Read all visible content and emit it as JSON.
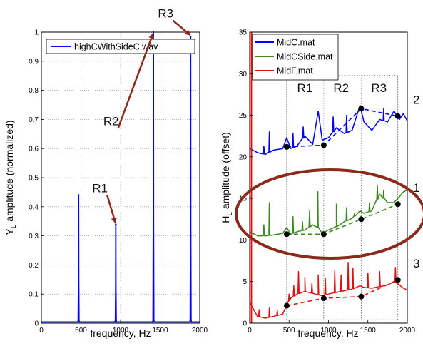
{
  "chart_data": [
    {
      "type": "line",
      "title": "",
      "xlabel": "frequency, Hz",
      "ylabel": "Y_L amplitude (normalized)",
      "xlim": [
        0,
        2000
      ],
      "ylim": [
        0,
        1
      ],
      "xticks": [
        0,
        500,
        1000,
        1500,
        2000
      ],
      "yticks": [
        0,
        0.1,
        0.2,
        0.3,
        0.4,
        0.5,
        0.6,
        0.7,
        0.8,
        0.9,
        1
      ],
      "grid": true,
      "legend": "top",
      "series": [
        {
          "name": "highCWithSideC.wav",
          "color": "#0000ff",
          "peaks": [
            {
              "x": 470,
              "y": 0.44
            },
            {
              "x": 940,
              "y": 0.34
            },
            {
              "x": 1415,
              "y": 1.0
            },
            {
              "x": 1885,
              "y": 0.985
            }
          ]
        }
      ],
      "annotations": [
        {
          "label": "R1",
          "x": 740,
          "y": 0.45,
          "arrow_to": [
            935,
            0.345
          ]
        },
        {
          "label": "R2",
          "x": 880,
          "y": 0.68,
          "arrow_to": [
            1410,
            0.995
          ]
        },
        {
          "label": "R3",
          "x": 1570,
          "y": 1.05,
          "arrow_to": [
            1880,
            0.99
          ]
        }
      ]
    },
    {
      "type": "line",
      "title": "",
      "xlabel": "frequency, Hz",
      "ylabel": "H_L amplitude (offset)",
      "xlim": [
        0,
        2000
      ],
      "ylim": [
        0,
        35
      ],
      "xticks": [
        0,
        500,
        1000,
        1500,
        2000
      ],
      "yticks": [
        0,
        5,
        10,
        15,
        20,
        25,
        30,
        35
      ],
      "grid": false,
      "legend": "top-left",
      "series": [
        {
          "name": "MidC.mat",
          "color": "#0000ff",
          "label": "2",
          "dots": [
            [
              470,
              21.2
            ],
            [
              940,
              21.4
            ],
            [
              1415,
              25.8
            ],
            [
              1880,
              24.9
            ]
          ],
          "profile": [
            [
              0,
              21
            ],
            [
              100,
              20.5
            ],
            [
              200,
              20.3
            ],
            [
              300,
              20.8
            ],
            [
              420,
              21
            ],
            [
              470,
              22.3
            ],
            [
              520,
              21
            ],
            [
              600,
              21.3
            ],
            [
              700,
              22.5
            ],
            [
              800,
              21.5
            ],
            [
              870,
              25.5
            ],
            [
              920,
              22
            ],
            [
              1000,
              22.3
            ],
            [
              1100,
              23.5
            ],
            [
              1200,
              22.8
            ],
            [
              1300,
              23.2
            ],
            [
              1400,
              26.2
            ],
            [
              1450,
              24.2
            ],
            [
              1550,
              23.2
            ],
            [
              1650,
              24.5
            ],
            [
              1750,
              24.2
            ],
            [
              1830,
              25.5
            ],
            [
              1900,
              24.5
            ],
            [
              1950,
              25.2
            ],
            [
              2000,
              24.3
            ]
          ],
          "spikes": [
            [
              180,
              21.3
            ],
            [
              250,
              23
            ],
            [
              550,
              22.8
            ],
            [
              680,
              23.6
            ],
            [
              1060,
              24.8
            ],
            [
              1230,
              25
            ],
            [
              1700,
              25.8
            ]
          ]
        },
        {
          "name": "MidCSide.mat",
          "color": "#3c8a1e",
          "label": "1",
          "dots": [
            [
              470,
              10.7
            ],
            [
              940,
              10.7
            ],
            [
              1415,
              12.5
            ],
            [
              1880,
              14.3
            ]
          ],
          "profile": [
            [
              0,
              11
            ],
            [
              100,
              10.5
            ],
            [
              200,
              10.5
            ],
            [
              300,
              10.6
            ],
            [
              420,
              10.8
            ],
            [
              470,
              11.5
            ],
            [
              520,
              10.7
            ],
            [
              600,
              11
            ],
            [
              700,
              11.2
            ],
            [
              800,
              11.8
            ],
            [
              870,
              11.5
            ],
            [
              920,
              10.8
            ],
            [
              1000,
              11.2
            ],
            [
              1100,
              11.6
            ],
            [
              1200,
              12.2
            ],
            [
              1300,
              12.6
            ],
            [
              1400,
              13.5
            ],
            [
              1450,
              13.2
            ],
            [
              1550,
              13.5
            ],
            [
              1650,
              15.5
            ],
            [
              1750,
              14.5
            ],
            [
              1830,
              14.5
            ],
            [
              1900,
              15.2
            ],
            [
              1950,
              15.8
            ],
            [
              2000,
              16
            ]
          ],
          "spikes": [
            [
              180,
              11.8
            ],
            [
              250,
              14.5
            ],
            [
              550,
              12.8
            ],
            [
              670,
              12.2
            ],
            [
              760,
              13.5
            ],
            [
              865,
              15.8
            ],
            [
              1100,
              14.3
            ],
            [
              1230,
              13.9
            ],
            [
              1330,
              13.2
            ],
            [
              1520,
              14.5
            ],
            [
              1620,
              16.6
            ],
            [
              1700,
              16
            ]
          ]
        },
        {
          "name": "MidF.mat",
          "color": "#dd1111",
          "label": "3",
          "dots": [
            [
              470,
              2.1
            ],
            [
              940,
              3.0
            ],
            [
              1415,
              3.2
            ],
            [
              1880,
              5.2
            ]
          ],
          "profile": [
            [
              0,
              2.5
            ],
            [
              100,
              0.8
            ],
            [
              200,
              0.6
            ],
            [
              300,
              0.8
            ],
            [
              420,
              1.1
            ],
            [
              470,
              2.2
            ],
            [
              520,
              3
            ],
            [
              600,
              3.5
            ],
            [
              700,
              3.8
            ],
            [
              800,
              3.6
            ],
            [
              870,
              3.4
            ],
            [
              920,
              3.3
            ],
            [
              1000,
              3.5
            ],
            [
              1100,
              3.7
            ],
            [
              1200,
              3.9
            ],
            [
              1300,
              4.1
            ],
            [
              1400,
              4.5
            ],
            [
              1450,
              4.3
            ],
            [
              1550,
              4.2
            ],
            [
              1650,
              4.4
            ],
            [
              1750,
              4.6
            ],
            [
              1830,
              5
            ],
            [
              1900,
              4.6
            ],
            [
              1950,
              4.2
            ],
            [
              2000,
              4
            ]
          ],
          "spikes": [
            [
              120,
              1.6
            ],
            [
              250,
              1.8
            ],
            [
              350,
              1.5
            ],
            [
              500,
              3.5
            ],
            [
              560,
              4.5
            ],
            [
              620,
              6.2
            ],
            [
              700,
              5.5
            ],
            [
              790,
              4.8
            ],
            [
              870,
              5.8
            ],
            [
              960,
              5.4
            ],
            [
              1080,
              6.3
            ],
            [
              1160,
              5.8
            ],
            [
              1250,
              7.3
            ],
            [
              1310,
              6.6
            ],
            [
              1500,
              6
            ],
            [
              1650,
              6.2
            ],
            [
              1850,
              6.7
            ]
          ]
        }
      ],
      "annotations": [
        {
          "label": "R1",
          "x": 700,
          "y": 27.8
        },
        {
          "label": "R2",
          "x": 1160,
          "y": 27.8
        },
        {
          "label": "R3",
          "x": 1640,
          "y": 27.8
        }
      ],
      "region_bounds_x": [
        470,
        940,
        1415,
        1880
      ]
    }
  ]
}
